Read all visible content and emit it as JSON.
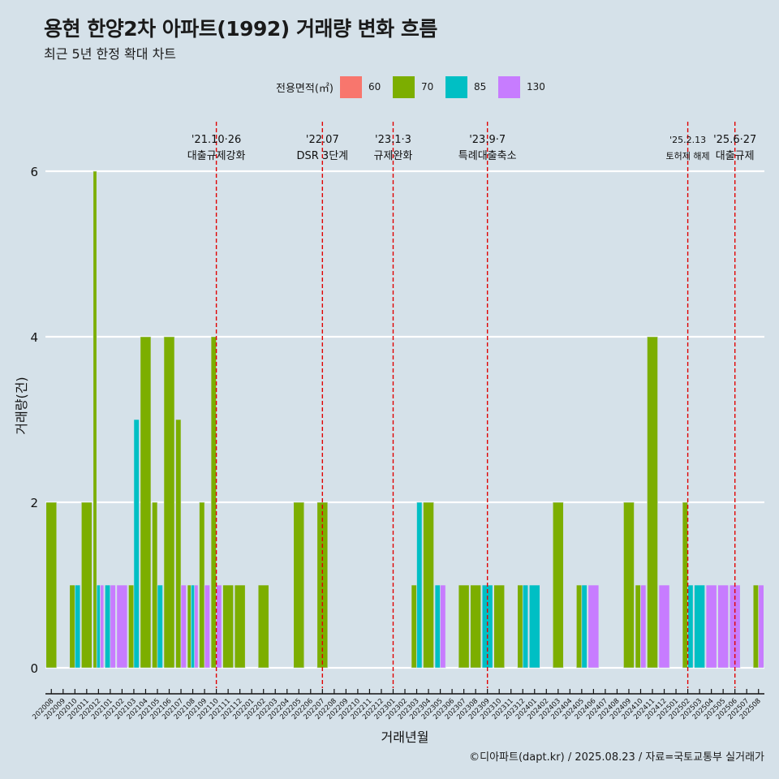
{
  "title": "용현 한양2차 아파트(1992) 거래량 변화 흐름",
  "subtitle": "최근 5년 한정 확대 차트",
  "caption": "©디아파트(dapt.kr) / 2025.08.23 / 자료=국토교통부 실거래가",
  "legend": {
    "title": "전용면적(㎡)",
    "items": [
      {
        "label": "60",
        "color": "#f8766d"
      },
      {
        "label": "70",
        "color": "#7cae00"
      },
      {
        "label": "85",
        "color": "#00bfc4"
      },
      {
        "label": "130",
        "color": "#c77cff"
      }
    ]
  },
  "chart_data": {
    "type": "bar",
    "xlabel": "거래년월",
    "ylabel": "거래량(건)",
    "ylim": [
      0,
      6
    ],
    "yticks": [
      0,
      2,
      4,
      6
    ],
    "grid": true,
    "legend_position": "top",
    "categories": [
      "202008",
      "202009",
      "202010",
      "202011",
      "202012",
      "202101",
      "202102",
      "202103",
      "202104",
      "202105",
      "202106",
      "202107",
      "202108",
      "202109",
      "202110",
      "202111",
      "202112",
      "202201",
      "202202",
      "202203",
      "202204",
      "202205",
      "202206",
      "202207",
      "202208",
      "202209",
      "202210",
      "202211",
      "202212",
      "202301",
      "202302",
      "202303",
      "202304",
      "202305",
      "202306",
      "202307",
      "202308",
      "202309",
      "202310",
      "202311",
      "202312",
      "202401",
      "202402",
      "202403",
      "202404",
      "202405",
      "202406",
      "202407",
      "202408",
      "202409",
      "202410",
      "202411",
      "202412",
      "202501",
      "202502",
      "202503",
      "202504",
      "202505",
      "202506",
      "202507",
      "202508"
    ],
    "series": [
      {
        "name": "60",
        "values": [
          0,
          0,
          0,
          0,
          0,
          0,
          0,
          0,
          0,
          0,
          0,
          0,
          0,
          0,
          0,
          0,
          0,
          0,
          0,
          0,
          0,
          0,
          0,
          0,
          0,
          0,
          0,
          0,
          0,
          0,
          0,
          0,
          0,
          0,
          0,
          0,
          0,
          0,
          0,
          0,
          0,
          0,
          0,
          0,
          0,
          0,
          0,
          0,
          0,
          0,
          0,
          0,
          0,
          0,
          0,
          0,
          0,
          0,
          0,
          0,
          0
        ]
      },
      {
        "name": "70",
        "values": [
          2,
          0,
          1,
          2,
          6,
          0,
          0,
          1,
          4,
          2,
          4,
          3,
          1,
          2,
          4,
          1,
          1,
          0,
          1,
          0,
          0,
          2,
          0,
          2,
          0,
          0,
          0,
          0,
          0,
          0,
          0,
          1,
          2,
          0,
          0,
          1,
          1,
          0,
          1,
          0,
          1,
          0,
          0,
          2,
          0,
          1,
          0,
          0,
          0,
          2,
          1,
          4,
          0,
          0,
          2,
          0,
          0,
          0,
          0,
          0,
          1
        ]
      },
      {
        "name": "85",
        "values": [
          0,
          0,
          1,
          0,
          1,
          1,
          0,
          3,
          0,
          1,
          0,
          0,
          1,
          0,
          0,
          0,
          0,
          0,
          0,
          0,
          0,
          0,
          0,
          0,
          0,
          0,
          0,
          0,
          0,
          0,
          0,
          2,
          0,
          1,
          0,
          0,
          0,
          1,
          0,
          0,
          1,
          1,
          0,
          0,
          0,
          1,
          0,
          0,
          0,
          0,
          0,
          0,
          0,
          0,
          1,
          1,
          0,
          0,
          0,
          0,
          0
        ]
      },
      {
        "name": "130",
        "values": [
          0,
          0,
          0,
          0,
          1,
          1,
          1,
          0,
          0,
          0,
          0,
          1,
          1,
          1,
          1,
          0,
          0,
          0,
          0,
          0,
          0,
          0,
          0,
          0,
          0,
          0,
          0,
          0,
          0,
          0,
          0,
          0,
          0,
          1,
          0,
          0,
          0,
          0,
          0,
          0,
          0,
          0,
          0,
          0,
          0,
          0,
          1,
          0,
          0,
          0,
          1,
          0,
          1,
          0,
          0,
          0,
          1,
          1,
          1,
          0,
          1
        ]
      }
    ],
    "annotations": [
      {
        "category": "202110",
        "date": "'21.10·26",
        "label": "대출규제강화"
      },
      {
        "category": "202207",
        "date": "'22.07",
        "label": "DSR 3단계"
      },
      {
        "category": "202301",
        "date": "'23.1·3",
        "label": "규제완화"
      },
      {
        "category": "202309",
        "date": "'23.9·7",
        "label": "특례대출축소"
      },
      {
        "category": "202502",
        "date": "'25.2.13",
        "label": "토허제 해제"
      },
      {
        "category": "202506",
        "date": "'25.6·27",
        "label": "대출규제"
      }
    ]
  }
}
